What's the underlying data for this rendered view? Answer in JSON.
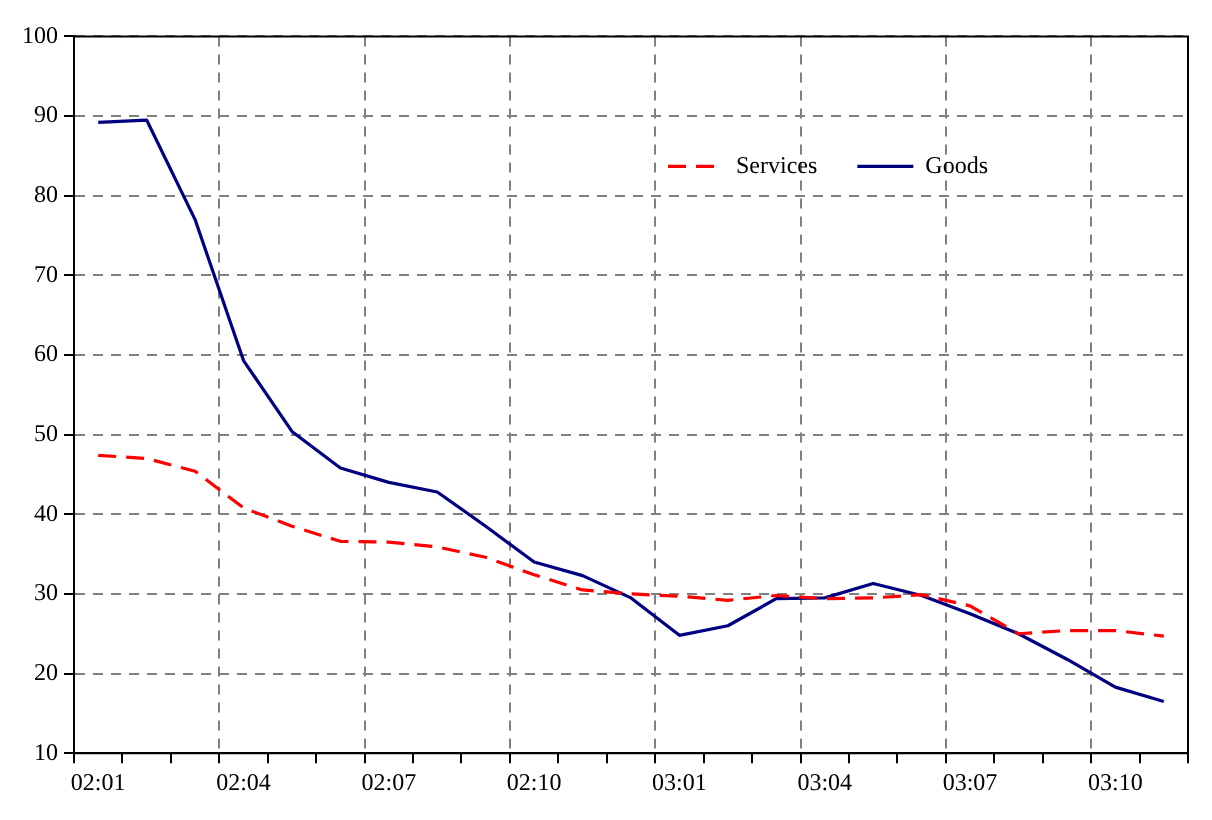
{
  "chart_data": {
    "type": "line",
    "categories": [
      "02:01",
      null,
      null,
      "02:04",
      null,
      null,
      "02:07",
      null,
      null,
      "02:10",
      null,
      null,
      "03:01",
      null,
      null,
      "03:04",
      null,
      null,
      "03:07",
      null,
      null,
      "03:10",
      null
    ],
    "series": [
      {
        "name": "Services",
        "color": "#ff0000",
        "line_style": "dashed",
        "values": [
          47.4,
          47,
          45.4,
          40.8,
          38.5,
          36.6,
          36.5,
          35.9,
          34.6,
          32.4,
          30.5,
          30,
          29.7,
          29.2,
          29.8,
          29.4,
          29.5,
          29.9,
          28.5,
          25,
          25.4,
          25.4,
          24.7
        ]
      },
      {
        "name": "Goods",
        "color": "#000080",
        "line_style": "solid",
        "values": [
          89.2,
          89.5,
          77,
          59.3,
          50.4,
          45.8,
          44,
          42.8,
          38.5,
          34,
          32.3,
          29.5,
          24.8,
          26,
          29.4,
          29.5,
          31.3,
          29.8,
          27.5,
          25,
          21.8,
          18.3,
          16.5
        ]
      }
    ],
    "ylim": [
      10,
      100
    ],
    "yticks": [
      10,
      20,
      30,
      40,
      50,
      60,
      70,
      80,
      90,
      100
    ],
    "grid": true,
    "legend": "top right",
    "marker": "none"
  }
}
